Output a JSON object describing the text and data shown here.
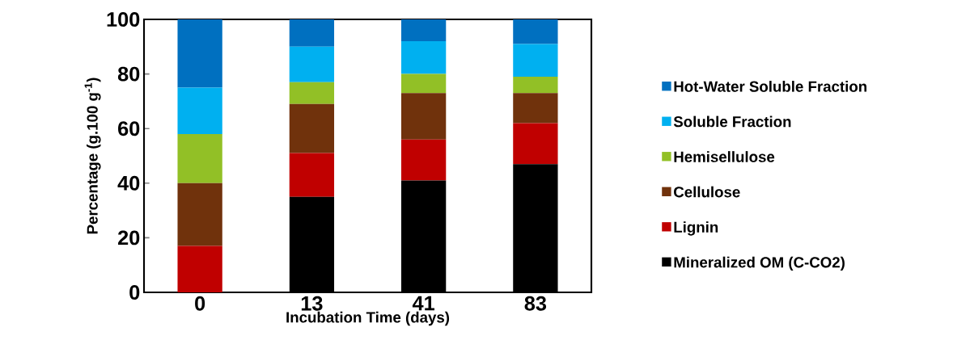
{
  "chart_data": {
    "type": "bar",
    "stacked": true,
    "xlabel": "Incubation Time (days)",
    "ylabel": "Percentage (g.100 g$^{-1}$)",
    "categories": [
      "0",
      "13",
      "41",
      "83"
    ],
    "ylim": [
      0,
      100
    ],
    "yticks": [
      0,
      20,
      40,
      60,
      80,
      100
    ],
    "grid": false,
    "legend": "right",
    "series": [
      {
        "name": "Mineralized OM (C-CO2)",
        "color": "#000000",
        "values": [
          0,
          35,
          41,
          47
        ]
      },
      {
        "name": "Lignin",
        "color": "#c00000",
        "values": [
          17,
          16,
          15,
          15
        ]
      },
      {
        "name": "Cellulose",
        "color": "#70320c",
        "values": [
          23,
          18,
          17,
          11
        ]
      },
      {
        "name": "Hemisellulose",
        "color": "#92c026",
        "values": [
          18,
          8,
          7,
          6
        ]
      },
      {
        "name": "Soluble Fraction",
        "color": "#00b0f0",
        "values": [
          17,
          13,
          12,
          12
        ]
      },
      {
        "name": "Hot-Water Soluble Fraction",
        "color": "#0070c0",
        "values": [
          25,
          10,
          8,
          9
        ]
      }
    ]
  }
}
